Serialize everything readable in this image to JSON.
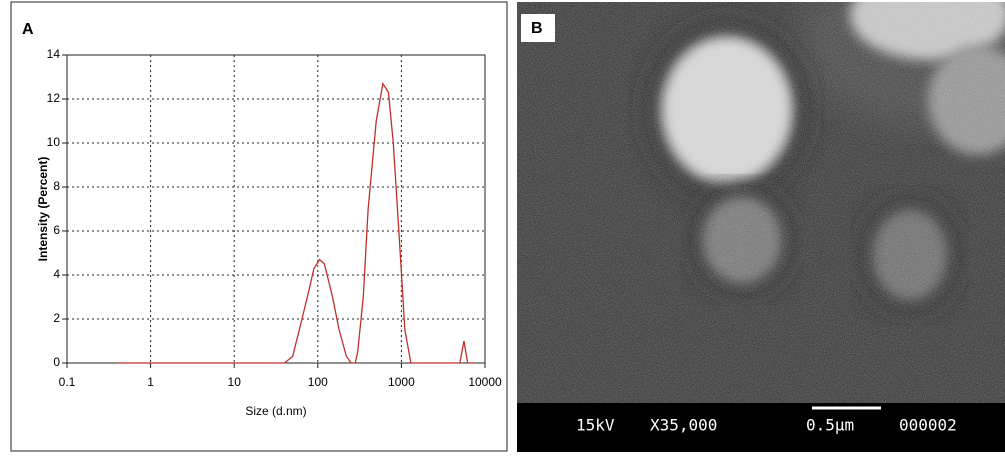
{
  "panel_labels": [
    "A",
    "B"
  ],
  "chart_data": {
    "type": "line",
    "x_label": "Size (d.nm)",
    "y_label": "Intensity (Percent)",
    "x": [
      0.4,
      40,
      50,
      60,
      75,
      90,
      105,
      120,
      150,
      180,
      220,
      250,
      280,
      300,
      350,
      400,
      500,
      600,
      700,
      800,
      950,
      1100,
      1300,
      5000,
      5600,
      6200,
      7500
    ],
    "series": [
      {
        "color": "#c0302a",
        "values": [
          0,
          0,
          0.3,
          1.5,
          3,
          4.3,
          4.7,
          4.5,
          3,
          1.5,
          0.3,
          0,
          0,
          0.5,
          3,
          7,
          11,
          12.7,
          12.3,
          10,
          5.5,
          1.5,
          0,
          0,
          1,
          0,
          0
        ]
      }
    ],
    "xscale": "log",
    "xlim": [
      0.1,
      10000
    ],
    "xticks": [
      0.1,
      1,
      10,
      100,
      1000,
      10000
    ],
    "ylim": [
      0,
      14
    ],
    "yticks": [
      0,
      2,
      4,
      6,
      8,
      10,
      12,
      14
    ],
    "grid": true
  },
  "sem": {
    "info": [
      "15kV",
      "X35,000",
      "0.5μm",
      "000002"
    ]
  }
}
